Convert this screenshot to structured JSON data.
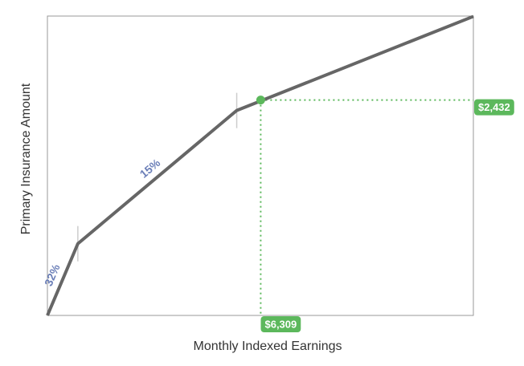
{
  "chart_data": {
    "type": "line",
    "x_label": "Monthly Indexed Earnings",
    "y_label": "Primary Insurance Amount",
    "xlim": [
      0,
      12600
    ],
    "ylim": [
      0,
      3380
    ],
    "series": [
      {
        "color": "#666666",
        "x": [
          0,
          900,
          5600,
          12600
        ],
        "values": [
          0,
          810,
          2314,
          3376
        ]
      }
    ],
    "bend_points": [
      900,
      5600
    ],
    "annotations": [
      {
        "text": "32%",
        "segment": 1
      },
      {
        "text": "15%",
        "segment": 2
      }
    ],
    "annotation_color": "#6b7fb8",
    "highlight": {
      "x": 6309,
      "y": 2432,
      "x_label": "$6,309",
      "y_label": "$2,432",
      "color": "#5cb85c"
    }
  }
}
